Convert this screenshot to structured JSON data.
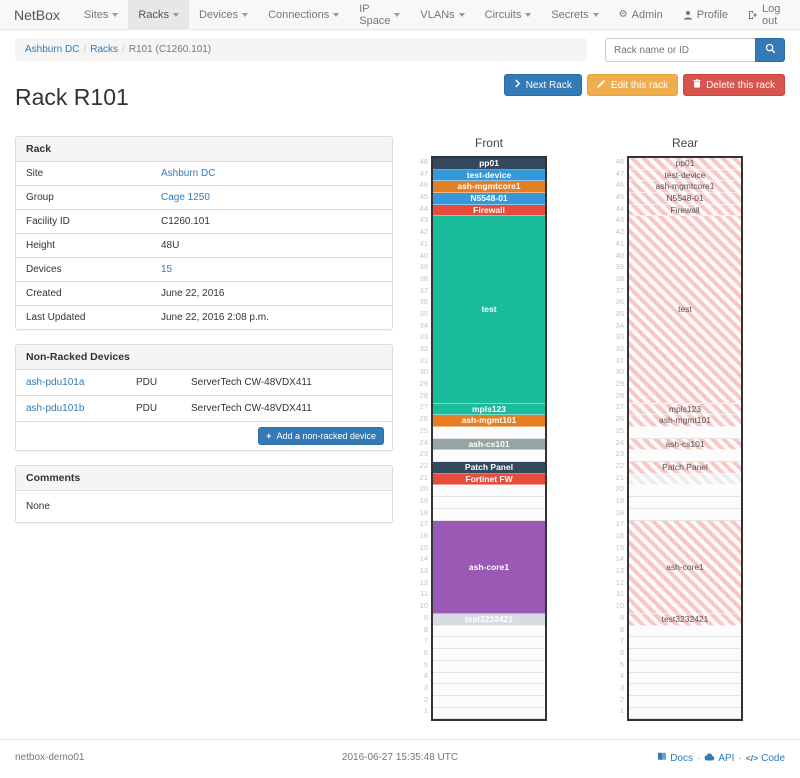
{
  "navbar": {
    "brand": "NetBox",
    "items": [
      {
        "label": "Sites",
        "active": false
      },
      {
        "label": "Racks",
        "active": true
      },
      {
        "label": "Devices",
        "active": false
      },
      {
        "label": "Connections",
        "active": false
      },
      {
        "label": "IP Space",
        "active": false
      },
      {
        "label": "VLANs",
        "active": false
      },
      {
        "label": "Circuits",
        "active": false
      },
      {
        "label": "Secrets",
        "active": false
      }
    ],
    "right": [
      {
        "label": "Admin",
        "icon": "gear-icon"
      },
      {
        "label": "Profile",
        "icon": "user-icon"
      },
      {
        "label": "Log out",
        "icon": "logout-icon"
      }
    ]
  },
  "breadcrumb": {
    "items": [
      {
        "label": "Ashburn DC",
        "link": true
      },
      {
        "label": "Racks",
        "link": true
      },
      {
        "label": "R101 (C1260.101)",
        "link": false
      }
    ]
  },
  "search": {
    "placeholder": "Rack name or ID",
    "icon": "search-icon"
  },
  "actions": {
    "next_label": "Next Rack",
    "edit_label": "Edit this rack",
    "delete_label": "Delete this rack"
  },
  "page_title": "Rack R101",
  "rack_panel": {
    "title": "Rack",
    "rows": [
      {
        "label": "Site",
        "value": "Ashburn DC",
        "link": true
      },
      {
        "label": "Group",
        "value": "Cage 1250",
        "link": true
      },
      {
        "label": "Facility ID",
        "value": "C1260.101",
        "link": false
      },
      {
        "label": "Height",
        "value": "48U",
        "link": false
      },
      {
        "label": "Devices",
        "value": "15",
        "link": true
      },
      {
        "label": "Created",
        "value": "June 22, 2016",
        "link": false
      },
      {
        "label": "Last Updated",
        "value": "June 22, 2016 2:08 p.m.",
        "link": false
      }
    ]
  },
  "nonracked_panel": {
    "title": "Non-Racked Devices",
    "rows": [
      {
        "name": "ash-pdu101a",
        "type": "PDU",
        "model": "ServerTech CW-48VDX411"
      },
      {
        "name": "ash-pdu101b",
        "type": "PDU",
        "model": "ServerTech CW-48VDX411"
      }
    ],
    "add_label": "Add a non-racked device"
  },
  "comments_panel": {
    "title": "Comments",
    "body": "None"
  },
  "elevations": {
    "front_title": "Front",
    "rear_title": "Rear",
    "units_total": 48,
    "colors": {
      "rear_stripe": "#f9c6c6",
      "rear_stripe_bg": "#fbfbfb",
      "rear_stripe_muted": "#ececec",
      "rear_text": "#555"
    },
    "slots": [
      {
        "unit": 48,
        "height": 1,
        "label": "pp01",
        "color": "#34495e"
      },
      {
        "unit": 47,
        "height": 1,
        "label": "test-device",
        "color": "#3498db"
      },
      {
        "unit": 46,
        "height": 1,
        "label": "ash-mgmtcore1",
        "color": "#e67e22"
      },
      {
        "unit": 45,
        "height": 1,
        "label": "N5548-01",
        "color": "#3498db"
      },
      {
        "unit": 44,
        "height": 1,
        "label": "Firewall",
        "color": "#e74c3c"
      },
      {
        "unit": 43,
        "height": 16,
        "label": "test",
        "color": "#1abc9c"
      },
      {
        "unit": 27,
        "height": 1,
        "label": "mpls123",
        "color": "#1abc9c"
      },
      {
        "unit": 26,
        "height": 1,
        "label": "ash-mgmt101",
        "color": "#e67e22"
      },
      {
        "unit": 25,
        "height": 1,
        "label": null
      },
      {
        "unit": 24,
        "height": 1,
        "label": "ash-cs101",
        "color": "#95a5a6"
      },
      {
        "unit": 23,
        "height": 1,
        "label": null
      },
      {
        "unit": 22,
        "height": 1,
        "label": "Patch Panel",
        "color": "#34495e"
      },
      {
        "unit": 21,
        "height": 1,
        "label": "Fortinet FW",
        "color": "#e74c3c",
        "rear_hidden": true
      },
      {
        "unit": 20,
        "height": 1,
        "label": null
      },
      {
        "unit": 19,
        "height": 1,
        "label": null
      },
      {
        "unit": 18,
        "height": 1,
        "label": null
      },
      {
        "unit": 17,
        "height": 8,
        "label": "ash-core1",
        "color": "#9b59b6"
      },
      {
        "unit": 9,
        "height": 1,
        "label": "test3232421",
        "color": "#d6dce0"
      },
      {
        "unit": 8,
        "height": 1,
        "label": null
      },
      {
        "unit": 7,
        "height": 1,
        "label": null
      },
      {
        "unit": 6,
        "height": 1,
        "label": null
      },
      {
        "unit": 5,
        "height": 1,
        "label": null
      },
      {
        "unit": 4,
        "height": 1,
        "label": null
      },
      {
        "unit": 3,
        "height": 1,
        "label": null
      },
      {
        "unit": 2,
        "height": 1,
        "label": null
      },
      {
        "unit": 1,
        "height": 1,
        "label": null
      }
    ]
  },
  "footer": {
    "hostname": "netbox-demo01",
    "timestamp": "2016-06-27 15:35:48 UTC",
    "links": [
      {
        "label": "Docs",
        "icon": "book-icon"
      },
      {
        "label": "API",
        "icon": "cloud-icon"
      },
      {
        "label": "Code",
        "icon": "code-icon"
      }
    ]
  }
}
